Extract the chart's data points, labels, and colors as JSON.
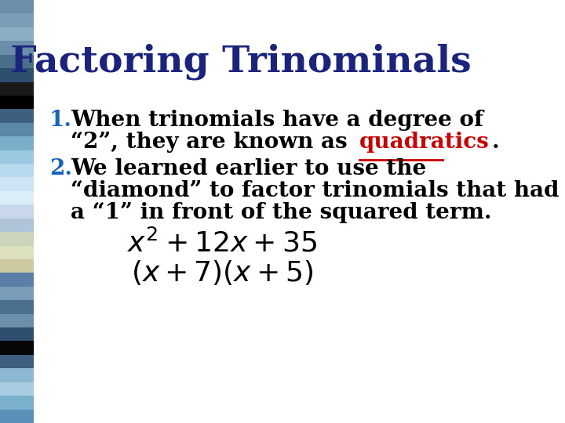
{
  "title": "Factoring Trinominals",
  "title_color": "#1a237e",
  "background_color": "#ffffff",
  "bullet1_number": "1.",
  "bullet1_number_color": "#1565c0",
  "bullet1_line1": "When trinomials have a degree of",
  "bullet1_line2_pre": "“2”, they are known as ",
  "bullet1_line2_special": "quadratics",
  "bullet1_line2_post": ".",
  "bullet1_special_color": "#cc0000",
  "bullet2_number": "2.",
  "bullet2_number_color": "#1565c0",
  "bullet2_line1": "We learned earlier to use the",
  "bullet2_line2": "“diamond” to factor trinomials that had",
  "bullet2_line3": "a “1” in front of the squared term.",
  "formula_color": "#000000",
  "text_color": "#000000"
}
